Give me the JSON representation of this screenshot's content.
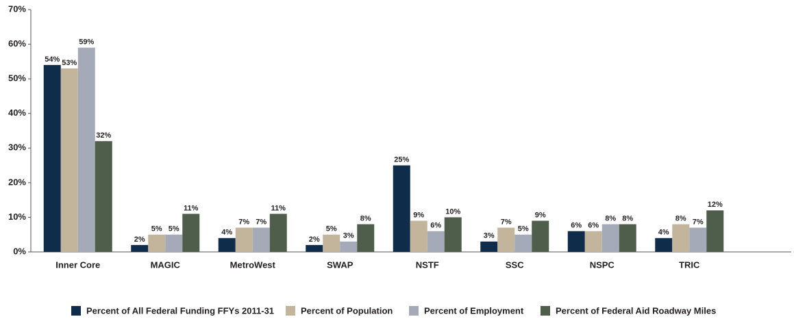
{
  "chart_data": {
    "type": "bar",
    "categories": [
      "Inner Core",
      "MAGIC",
      "MetroWest",
      "SWAP",
      "NSTF",
      "SSC",
      "NSPC",
      "TRIC"
    ],
    "series": [
      {
        "name": "Percent of All Federal Funding FFYs 2011-31",
        "color": "#0f2d4b",
        "values": [
          54,
          2,
          4,
          2,
          25,
          3,
          6,
          4
        ],
        "value_labels": [
          "54%",
          "2%",
          "4%",
          "2%",
          "25%",
          "3%",
          "6%",
          "4%"
        ]
      },
      {
        "name": "Percent of Population",
        "color": "#c3b59b",
        "values": [
          53,
          5,
          7,
          5,
          9,
          7,
          6,
          8
        ],
        "value_labels": [
          "53%",
          "5%",
          "7%",
          "5%",
          "9%",
          "7%",
          "6%",
          "8%"
        ]
      },
      {
        "name": "Percent of Employment",
        "color": "#a5aab9",
        "values": [
          59,
          5,
          7,
          3,
          6,
          5,
          8,
          7
        ],
        "value_labels": [
          "59%",
          "5%",
          "7%",
          "3%",
          "6%",
          "5%",
          "8%",
          "7%"
        ]
      },
      {
        "name": "Percent of Federal Aid Roadway Miles",
        "color": "#4f5e4b",
        "values": [
          32,
          11,
          11,
          8,
          10,
          9,
          8,
          12
        ],
        "value_labels": [
          "32%",
          "11%",
          "11%",
          "8%",
          "10%",
          "9%",
          "8%",
          "12%"
        ]
      }
    ],
    "ylim": [
      0,
      70
    ],
    "yticks": [
      {
        "value": 0,
        "label": "0%"
      },
      {
        "value": 10,
        "label": "10%"
      },
      {
        "value": 20,
        "label": "20%"
      },
      {
        "value": 30,
        "label": "30%"
      },
      {
        "value": 40,
        "label": "40%"
      },
      {
        "value": 50,
        "label": "50%"
      },
      {
        "value": 60,
        "label": "60%"
      },
      {
        "value": 70,
        "label": "70%"
      }
    ],
    "legend": "bottom"
  }
}
